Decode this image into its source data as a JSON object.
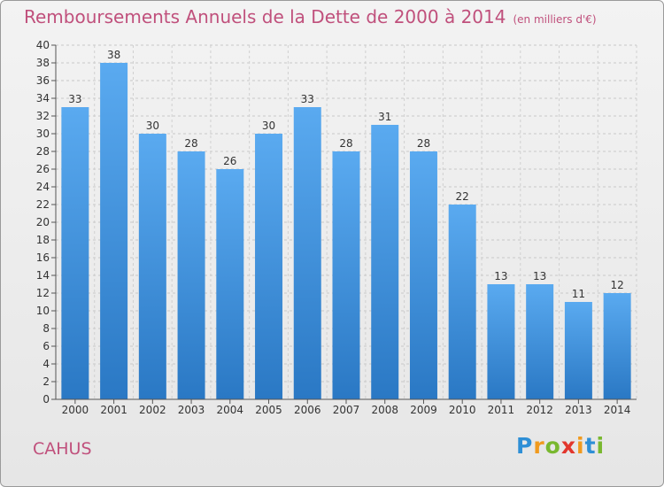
{
  "header": {
    "title": "Remboursements Annuels de la Dette de 2000 à 2014",
    "unit": "(en milliers d'€)"
  },
  "footer": {
    "city": "CAHUS",
    "logo_text": "Proxiti"
  },
  "colors": {
    "bar_light": "#5aaaf0",
    "bar_dark": "#2a78c4",
    "title": "#c0507c"
  },
  "chart_data": {
    "type": "bar",
    "title": "Remboursements Annuels de la Dette de 2000 à 2014",
    "subtitle": "(en milliers d'€)",
    "xlabel": "",
    "ylabel": "",
    "categories": [
      "2000",
      "2001",
      "2002",
      "2003",
      "2004",
      "2005",
      "2006",
      "2007",
      "2008",
      "2009",
      "2010",
      "2011",
      "2012",
      "2013",
      "2014"
    ],
    "values": [
      33,
      38,
      30,
      28,
      26,
      30,
      33,
      28,
      31,
      28,
      22,
      13,
      13,
      11,
      12
    ],
    "ylim": [
      0,
      40
    ],
    "ytick_step": 2,
    "grid": true,
    "data_labels": true
  }
}
